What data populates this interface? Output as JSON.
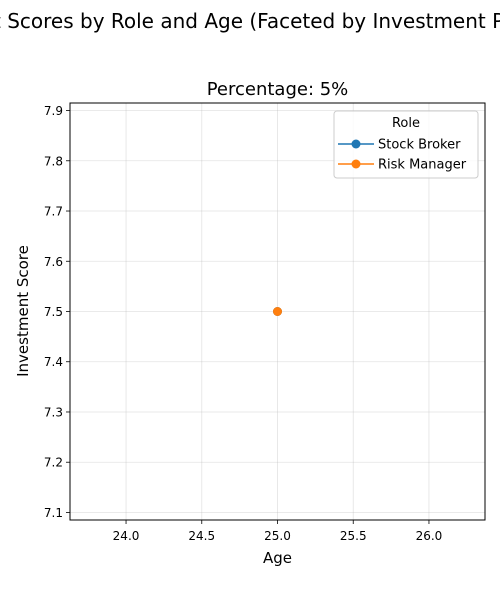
{
  "chart_data": {
    "type": "line",
    "suptitle": "Investment Scores by Role and Age (Faceted by Investment Percentage)",
    "title": "Percentage: 5%",
    "xlabel": "Age",
    "ylabel": "Investment Score",
    "xlim": [
      23.63,
      26.37
    ],
    "ylim": [
      7.085,
      7.915
    ],
    "xticks": [
      24.0,
      24.5,
      25.0,
      25.5,
      26.0
    ],
    "xtick_labels": [
      "24.0",
      "24.5",
      "25.0",
      "25.5",
      "26.0"
    ],
    "yticks": [
      7.1,
      7.2,
      7.3,
      7.4,
      7.5,
      7.6,
      7.7,
      7.8,
      7.9
    ],
    "ytick_labels": [
      "7.1",
      "7.2",
      "7.3",
      "7.4",
      "7.5",
      "7.6",
      "7.7",
      "7.8",
      "7.9"
    ],
    "grid": true,
    "legend": {
      "title": "Role",
      "placement": "top-right"
    },
    "series": [
      {
        "name": "Stock Broker",
        "color": "#1f77b4",
        "x": [
          25
        ],
        "y": [
          7.5
        ]
      },
      {
        "name": "Risk Manager",
        "color": "#ff7f0e",
        "x": [
          25
        ],
        "y": [
          7.5
        ]
      }
    ]
  }
}
